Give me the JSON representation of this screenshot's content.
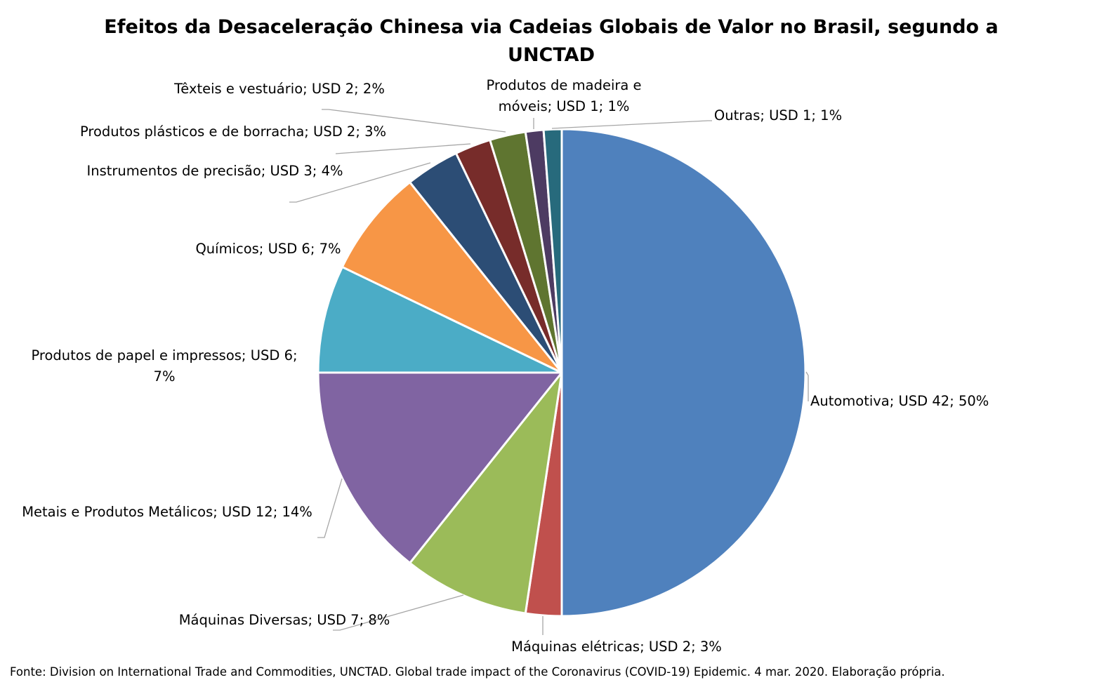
{
  "chart_data": {
    "type": "pie",
    "title_lines": [
      "Efeitos da Desaceleração Chinesa via Cadeias Globais de Valor no Brasil, segundo a",
      "UNCTAD"
    ],
    "start_angle_deg": 0,
    "direction": "clockwise",
    "slices": [
      {
        "name": "Automotiva",
        "value": 42,
        "pct": "50%",
        "label_lines": [
          "Automotiva; USD 42; 50%"
        ],
        "color": "#4F81BD"
      },
      {
        "name": "Máquinas elétricas",
        "value": 2,
        "pct": "3%",
        "label_lines": [
          "Máquinas elétricas; USD 2; 3%"
        ],
        "color": "#C0504D"
      },
      {
        "name": "Máquinas Diversas",
        "value": 7,
        "pct": "8%",
        "label_lines": [
          "Máquinas Diversas; USD 7; 8%"
        ],
        "color": "#9BBB59"
      },
      {
        "name": "Metais e Produtos Metálicos",
        "value": 12,
        "pct": "14%",
        "label_lines": [
          "Metais e Produtos Metálicos; USD 12; 14%"
        ],
        "color": "#8064A2"
      },
      {
        "name": "Produtos de papel e impressos",
        "value": 6,
        "pct": "7%",
        "label_lines": [
          "Produtos de papel e impressos; USD 6;",
          "7%"
        ],
        "color": "#4BACC6"
      },
      {
        "name": "Químicos",
        "value": 6,
        "pct": "7%",
        "label_lines": [
          "Químicos; USD 6; 7%"
        ],
        "color": "#F79646"
      },
      {
        "name": "Instrumentos de precisão",
        "value": 3,
        "pct": "4%",
        "label_lines": [
          "Instrumentos de precisão; USD 3; 4%"
        ],
        "color": "#2C4D75"
      },
      {
        "name": "Produtos plásticos e de borracha",
        "value": 2,
        "pct": "3%",
        "label_lines": [
          "Produtos plásticos e de borracha; USD 2; 3%"
        ],
        "color": "#772C2A"
      },
      {
        "name": "Têxteis e vestuário",
        "value": 2,
        "pct": "2%",
        "label_lines": [
          "Têxteis e vestuário; USD 2; 2%"
        ],
        "color": "#5F7530"
      },
      {
        "name": "Produtos de madeira e móveis",
        "value": 1,
        "pct": "1%",
        "label_lines": [
          "Produtos de madeira e",
          "móveis; USD 1; 1%"
        ],
        "color": "#4D3B62"
      },
      {
        "name": "Outras",
        "value": 1,
        "pct": "1%",
        "label_lines": [
          "Outras; USD 1; 1%"
        ],
        "color": "#276A7C"
      }
    ]
  },
  "footer": {
    "source": "Fonte:  Division on International Trade and Commodities, UNCTAD.  Global trade impact of the Coronavirus (COVID-19) Epidemic. 4 mar. 2020. Elaboração própria."
  }
}
